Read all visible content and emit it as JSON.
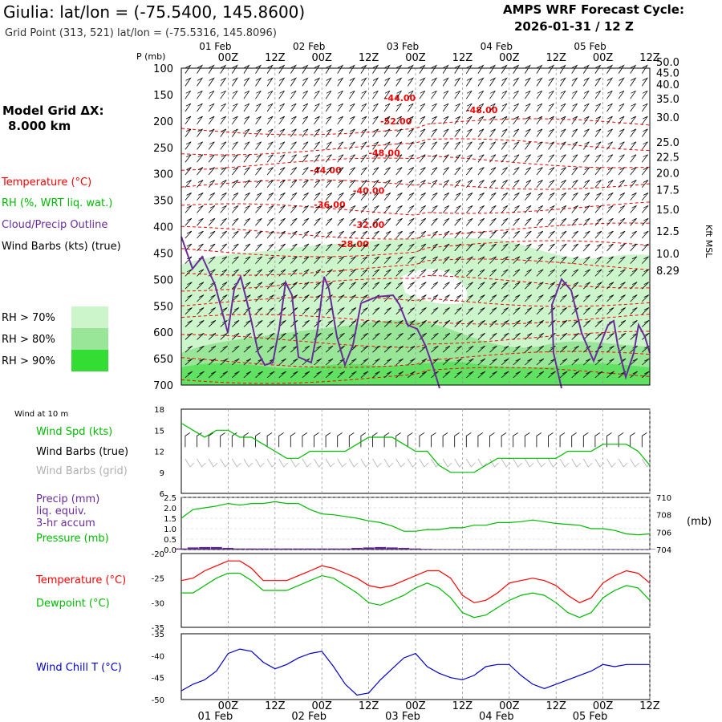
{
  "header": {
    "title": "Giulia:  lat/lon = (-75.5400, 145.8600)",
    "subtitle": "Grid Point (313, 521) lat/lon = (-75.5316, 145.8096)",
    "product_line1": "AMPS WRF Forecast Cycle:",
    "product_line2": "2026-01-31 / 12  Z"
  },
  "axis": {
    "p_label": "P (mb)",
    "kft_label": "Kft MSL",
    "mb_label": "(mb)",
    "x_top_dates": [
      "01 Feb",
      "02 Feb",
      "03 Feb",
      "04 Feb",
      "05 Feb"
    ],
    "x_bottom_dates": [
      "01 Feb",
      "02 Feb",
      "03 Feb",
      "04 Feb",
      "05 Feb"
    ],
    "x_times": [
      "00Z",
      "12Z",
      "00Z",
      "12Z",
      "00Z",
      "12Z",
      "00Z",
      "12Z",
      "00Z",
      "12Z"
    ],
    "x_time_values": [
      12,
      24,
      36,
      48,
      60,
      72,
      84,
      96,
      108,
      120
    ],
    "x_date_values": [
      12,
      36,
      60,
      84,
      108
    ],
    "x_range": [
      0,
      120
    ]
  },
  "left_labels": {
    "model_grid_1": "Model Grid ΔX:",
    "model_grid_2": "8.000 km",
    "temperature": "Temperature (°C)",
    "rh": "RH (%, WRT liq. wat.)",
    "cloud": "Cloud/Precip Outline",
    "barbs": "Wind Barbs (kts) (true)",
    "rh70": "RH > 70%",
    "rh80": "RH > 80%",
    "rh90": "RH > 90%",
    "wind10": "Wind at 10 m",
    "wspd": "Wind Spd (kts)",
    "wbarbs_true": "Wind Barbs (true)",
    "wbarbs_grid": "Wind Barbs (grid)",
    "precip1": "Precip (mm)",
    "precip2": "liq. equiv.",
    "precip3": "3-hr accum",
    "pressure": "Pressure (mb)",
    "temp2": "Temperature (°C)",
    "dewpoint": "Dewpoint (°C)",
    "windchill": "Wind Chill T (°C)"
  },
  "colors": {
    "temperature": "#ff0000",
    "rh": "#00bb00",
    "cloud": "#6a2c9a",
    "barbs": "#000000",
    "barbs_grid": "#b0b0b0",
    "rh70": "#ccf5cc",
    "rh80": "#99e699",
    "rh90": "#33dd33",
    "windchill": "#0000cc",
    "precip": "#5a2a8a"
  },
  "chart_data": [
    {
      "type": "heatmap",
      "name": "Cross-section",
      "y_axis_left": {
        "label": "P (mb)",
        "ticks": [
          100,
          150,
          200,
          250,
          300,
          350,
          400,
          450,
          500,
          550,
          600,
          650,
          700
        ],
        "range": [
          100,
          700
        ]
      },
      "y_axis_right": {
        "label": "Kft MSL",
        "ticks": [
          "50.0",
          "45.0",
          "40.0",
          "35.0",
          "30.0",
          "25.0",
          "22.5",
          "20.0",
          "17.5",
          "15.0",
          "12.5",
          "10.0",
          "8.29"
        ],
        "tick_pressures": [
          88,
          108,
          130,
          158,
          193,
          240,
          268,
          298,
          330,
          367,
          408,
          451,
          483
        ]
      },
      "temperature_labels": [
        {
          "text": "-44.00",
          "t": 56,
          "p": 162
        },
        {
          "text": "-48.00",
          "t": 77,
          "p": 185
        },
        {
          "text": "-52.00",
          "t": 55,
          "p": 206
        },
        {
          "text": "-48.00",
          "t": 52,
          "p": 266
        },
        {
          "text": "-44.00",
          "t": 37,
          "p": 299
        },
        {
          "text": "-40.00",
          "t": 48,
          "p": 338
        },
        {
          "text": "-36.00",
          "t": 38,
          "p": 364
        },
        {
          "text": "-32.00",
          "t": 48,
          "p": 402
        },
        {
          "text": "-28.00",
          "t": 44,
          "p": 439
        }
      ]
    },
    {
      "type": "line",
      "name": "Wind at 10 m",
      "y_range": [
        6,
        18
      ],
      "y_ticks": [
        6,
        9,
        12,
        15,
        18
      ],
      "x": [
        0,
        3,
        6,
        9,
        12,
        15,
        18,
        21,
        24,
        27,
        30,
        33,
        36,
        39,
        42,
        45,
        48,
        51,
        54,
        57,
        60,
        63,
        66,
        69,
        72,
        75,
        78,
        81,
        84,
        87,
        90,
        93,
        96,
        99,
        102,
        105,
        108,
        111,
        114,
        117,
        120
      ],
      "series": [
        {
          "name": "Wind Spd (kts)",
          "values": [
            16,
            15,
            14,
            15,
            15,
            14,
            14,
            13,
            12,
            11,
            11,
            12,
            12,
            12,
            12,
            13,
            14,
            14,
            14,
            13,
            12,
            12,
            10,
            9,
            9,
            9,
            10,
            11,
            11,
            11,
            11,
            11,
            11,
            12,
            12,
            12,
            13,
            13,
            13,
            12,
            10
          ]
        }
      ]
    },
    {
      "type": "line",
      "name": "Precip / Pressure",
      "y_left_ticks": [
        "0.0",
        "0.5",
        "1.0",
        "1.5",
        "2.0",
        "2.5"
      ],
      "y_left_range": [
        0,
        2.5
      ],
      "y_right_ticks": [
        704,
        706,
        708,
        710
      ],
      "y_right_range": [
        704,
        710
      ],
      "x": [
        0,
        3,
        6,
        9,
        12,
        15,
        18,
        21,
        24,
        27,
        30,
        33,
        36,
        39,
        42,
        45,
        48,
        51,
        54,
        57,
        60,
        63,
        66,
        69,
        72,
        75,
        78,
        81,
        84,
        87,
        90,
        93,
        96,
        99,
        102,
        105,
        108,
        111,
        114,
        117,
        120
      ],
      "series": [
        {
          "name": "Pressure (mb)",
          "values": [
            707.6,
            708.6,
            708.8,
            709.0,
            709.3,
            709.1,
            709.3,
            709.3,
            709.5,
            709.3,
            709.3,
            708.6,
            708.1,
            708.0,
            707.8,
            707.6,
            707.3,
            707.1,
            706.7,
            706.1,
            706.1,
            706.3,
            706.3,
            706.5,
            706.5,
            706.8,
            706.8,
            707.1,
            707.1,
            707.2,
            707.4,
            707.2,
            707.0,
            706.9,
            706.8,
            706.4,
            706.4,
            706.2,
            705.8,
            705.7,
            705.8
          ]
        },
        {
          "name": "Precip (mm)",
          "values": [
            0.05,
            0.1,
            0.12,
            0.12,
            0.08,
            0.05,
            0.05,
            0.05,
            0.05,
            0.05,
            0.05,
            0.05,
            0.05,
            0.05,
            0.05,
            0.08,
            0.1,
            0.12,
            0.1,
            0.08,
            0.05,
            0.03,
            0.02,
            0.02,
            0.02,
            0.02,
            0.02,
            0.02,
            0.02,
            0.02,
            0.02,
            0.02,
            0.02,
            0.02,
            0.02,
            0.02,
            0.02,
            0.02,
            0.02,
            0.02,
            0.02
          ]
        }
      ]
    },
    {
      "type": "line",
      "name": "Temperature / Dewpoint",
      "y_range": [
        -35,
        -20
      ],
      "y_ticks": [
        -35,
        -30,
        -25,
        -20
      ],
      "x": [
        0,
        3,
        6,
        9,
        12,
        15,
        18,
        21,
        24,
        27,
        30,
        33,
        36,
        39,
        42,
        45,
        48,
        51,
        54,
        57,
        60,
        63,
        66,
        69,
        72,
        75,
        78,
        81,
        84,
        87,
        90,
        93,
        96,
        99,
        102,
        105,
        108,
        111,
        114,
        117,
        120
      ],
      "series": [
        {
          "name": "Temperature (°C)",
          "values": [
            -25.5,
            -25.0,
            -23.5,
            -22.5,
            -21.5,
            -21.5,
            -23.0,
            -25.5,
            -25.5,
            -25.5,
            -24.5,
            -23.5,
            -22.5,
            -23.0,
            -24.0,
            -25.0,
            -26.5,
            -27.0,
            -26.5,
            -25.5,
            -24.5,
            -23.5,
            -23.5,
            -25.0,
            -28.5,
            -30.0,
            -29.5,
            -28.0,
            -26.0,
            -25.5,
            -25.0,
            -25.5,
            -26.5,
            -28.5,
            -30.0,
            -29.0,
            -26.0,
            -24.5,
            -23.5,
            -24.0,
            -26.0
          ]
        },
        {
          "name": "Dewpoint (°C)",
          "values": [
            -28.0,
            -28.0,
            -26.5,
            -25.0,
            -24.0,
            -24.0,
            -25.5,
            -27.5,
            -27.5,
            -27.5,
            -26.5,
            -25.5,
            -24.5,
            -25.0,
            -26.5,
            -28.0,
            -30.0,
            -30.5,
            -29.5,
            -28.5,
            -27.0,
            -26.0,
            -27.0,
            -29.0,
            -32.0,
            -33.0,
            -32.5,
            -31.0,
            -29.5,
            -28.5,
            -28.0,
            -28.5,
            -30.0,
            -32.0,
            -33.0,
            -32.0,
            -29.0,
            -27.5,
            -26.5,
            -27.0,
            -29.5
          ]
        }
      ]
    },
    {
      "type": "line",
      "name": "Wind Chill",
      "y_range": [
        -50,
        -35
      ],
      "y_ticks": [
        -50,
        -45,
        -40,
        -35
      ],
      "x": [
        0,
        3,
        6,
        9,
        12,
        15,
        18,
        21,
        24,
        27,
        30,
        33,
        36,
        39,
        42,
        45,
        48,
        51,
        54,
        57,
        60,
        63,
        66,
        69,
        72,
        75,
        78,
        81,
        84,
        87,
        90,
        93,
        96,
        99,
        102,
        105,
        108,
        111,
        114,
        117,
        120
      ],
      "series": [
        {
          "name": "Wind Chill T (°C)",
          "values": [
            -48.0,
            -46.5,
            -45.5,
            -43.5,
            -39.5,
            -38.5,
            -39.0,
            -41.5,
            -43.0,
            -42.0,
            -40.5,
            -39.5,
            -39.0,
            -42.5,
            -46.5,
            -49.0,
            -48.5,
            -45.5,
            -43.0,
            -40.5,
            -39.5,
            -42.5,
            -44.0,
            -45.0,
            -45.5,
            -44.5,
            -42.5,
            -42.0,
            -42.0,
            -44.5,
            -46.5,
            -47.5,
            -46.5,
            -45.5,
            -44.5,
            -43.5,
            -42.0,
            -42.5,
            -42.0,
            -42.0,
            -42.0
          ]
        }
      ]
    }
  ]
}
